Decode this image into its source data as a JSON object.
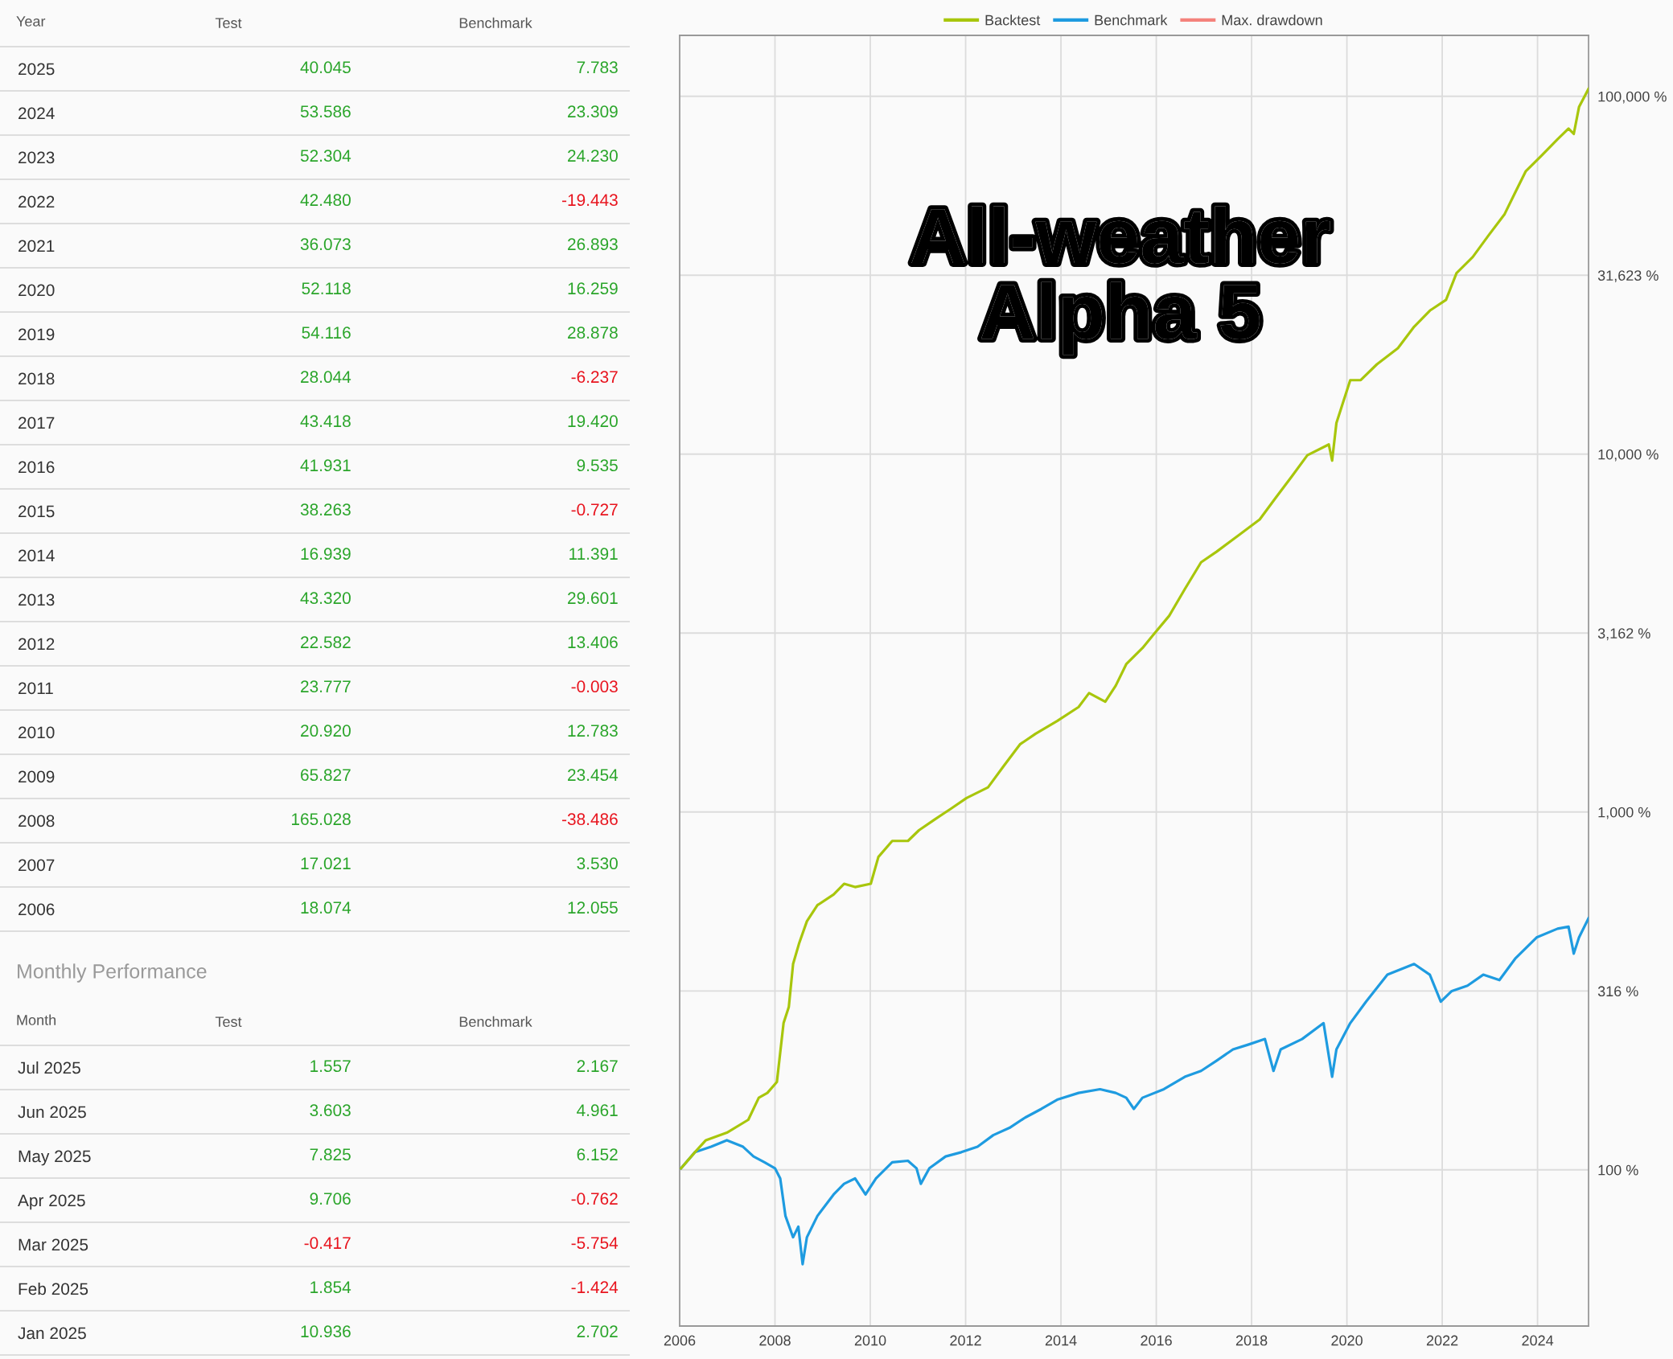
{
  "chart_data": [
    {
      "type": "heatmap",
      "ylabel": "Year",
      "categories": [
        "Test",
        "Benchmark"
      ],
      "y_categories": [
        "2025",
        "2024",
        "2023",
        "2022",
        "2021",
        "2020",
        "2019",
        "2018",
        "2017",
        "2016",
        "2015",
        "2014",
        "2013",
        "2012",
        "2011",
        "2010",
        "2009",
        "2008",
        "2007",
        "2006"
      ],
      "cells": [
        [
          40.045,
          7.783
        ],
        [
          53.586,
          23.309
        ],
        [
          52.304,
          24.23
        ],
        [
          42.48,
          -19.443
        ],
        [
          36.073,
          26.893
        ],
        [
          52.118,
          16.259
        ],
        [
          54.116,
          28.878
        ],
        [
          28.044,
          -6.237
        ],
        [
          43.418,
          19.42
        ],
        [
          41.931,
          9.535
        ],
        [
          38.263,
          -0.727
        ],
        [
          16.939,
          11.391
        ],
        [
          43.32,
          29.601
        ],
        [
          22.582,
          13.406
        ],
        [
          23.777,
          -0.003
        ],
        [
          20.92,
          12.783
        ],
        [
          65.827,
          23.454
        ],
        [
          165.028,
          -38.486
        ],
        [
          17.021,
          3.53
        ],
        [
          18.074,
          12.055
        ]
      ],
      "cell_labels": [
        [
          "40.045",
          "7.783"
        ],
        [
          "53.586",
          "23.309"
        ],
        [
          "52.304",
          "24.230"
        ],
        [
          "42.480",
          "-19.443"
        ],
        [
          "36.073",
          "26.893"
        ],
        [
          "52.118",
          "16.259"
        ],
        [
          "54.116",
          "28.878"
        ],
        [
          "28.044",
          "-6.237"
        ],
        [
          "43.418",
          "19.420"
        ],
        [
          "41.931",
          "9.535"
        ],
        [
          "38.263",
          "-0.727"
        ],
        [
          "16.939",
          "11.391"
        ],
        [
          "43.320",
          "29.601"
        ],
        [
          "22.582",
          "13.406"
        ],
        [
          "23.777",
          "-0.003"
        ],
        [
          "20.920",
          "12.783"
        ],
        [
          "65.827",
          "23.454"
        ],
        [
          "165.028",
          "-38.486"
        ],
        [
          "17.021",
          "3.530"
        ],
        [
          "18.074",
          "12.055"
        ]
      ],
      "colors": [
        "#2aa52a",
        "#e8141e"
      ]
    },
    {
      "type": "heatmap",
      "title": "Monthly Performance",
      "ylabel": "Month",
      "categories": [
        "Test",
        "Benchmark"
      ],
      "y_categories": [
        "Jul 2025",
        "Jun 2025",
        "May 2025",
        "Apr 2025",
        "Mar 2025",
        "Feb 2025",
        "Jan 2025"
      ],
      "cells": [
        [
          1.557,
          2.167
        ],
        [
          3.603,
          4.961
        ],
        [
          7.825,
          6.152
        ],
        [
          9.706,
          -0.762
        ],
        [
          -0.417,
          -5.754
        ],
        [
          1.854,
          -1.424
        ],
        [
          10.936,
          2.702
        ]
      ],
      "cell_labels": [
        [
          "1.557",
          "2.167"
        ],
        [
          "3.603",
          "4.961"
        ],
        [
          "7.825",
          "6.152"
        ],
        [
          "9.706",
          "-0.762"
        ],
        [
          "-0.417",
          "-5.754"
        ],
        [
          "1.854",
          "-1.424"
        ],
        [
          "10.936",
          "2.702"
        ]
      ],
      "colors": [
        "#2aa52a",
        "#e8141e"
      ]
    },
    {
      "type": "line",
      "log": "y",
      "grid": true,
      "legend": "top",
      "annotations": [
        "All-weather\nAlpha 5"
      ],
      "xlim": [
        2006.0,
        2025.07
      ],
      "xticks": [
        2006,
        2008,
        2010,
        2012,
        2014,
        2016,
        2018,
        2020,
        2022,
        2024
      ],
      "ylim": [
        36.6,
        148000
      ],
      "yticks": [
        {
          "value": 100,
          "label": "100 %"
        },
        {
          "value": 316,
          "label": "316 %"
        },
        {
          "value": 1000,
          "label": "1,000 %"
        },
        {
          "value": 3162,
          "label": "3,162 %"
        },
        {
          "value": 10000,
          "label": "10,000 %"
        },
        {
          "value": 31623,
          "label": "31,623 %"
        },
        {
          "value": 100000,
          "label": "100,000 %"
        }
      ],
      "series": [
        {
          "name": "Backtest",
          "color": "#a8c60c",
          "x": [
            2006.03,
            2006.32,
            2006.55,
            2006.99,
            2007.44,
            2007.66,
            2007.84,
            2008.04,
            2008.18,
            2008.29,
            2008.38,
            2008.51,
            2008.67,
            2008.89,
            2009.23,
            2009.45,
            2009.68,
            2010.01,
            2010.17,
            2010.46,
            2010.79,
            2011.02,
            2011.35,
            2011.69,
            2012.02,
            2012.47,
            2012.8,
            2013.14,
            2013.47,
            2013.92,
            2014.37,
            2014.59,
            2014.93,
            2015.15,
            2015.37,
            2015.71,
            2015.93,
            2016.27,
            2016.6,
            2016.94,
            2017.27,
            2017.72,
            2018.17,
            2018.5,
            2018.84,
            2019.17,
            2019.62,
            2019.69,
            2019.78,
            2020.07,
            2020.29,
            2020.63,
            2021.07,
            2021.41,
            2021.74,
            2022.08,
            2022.3,
            2022.64,
            2022.97,
            2023.31,
            2023.53,
            2023.75,
            2024.09,
            2024.42,
            2024.65,
            2024.76,
            2024.87,
            2025.07
          ],
          "values": [
            101,
            112,
            121,
            127,
            138,
            159,
            164,
            176,
            257,
            285,
            376,
            431,
            495,
            549,
            588,
            630,
            617,
            630,
            749,
            830,
            830,
            889,
            953,
            1021,
            1094,
            1172,
            1345,
            1545,
            1655,
            1795,
            1965,
            2149,
            2034,
            2255,
            2588,
            2871,
            3119,
            3532,
            4198,
            4986,
            5343,
            5920,
            6566,
            7535,
            8650,
            9931,
            10640,
            9594,
            12220,
            16100,
            16100,
            17830,
            19780,
            22700,
            25180,
            26980,
            32060,
            35560,
            40830,
            46880,
            53830,
            61660,
            68400,
            75860,
            81280,
            78520,
            93330,
            104900
          ]
        },
        {
          "name": "Benchmark",
          "color": "#1e9be0",
          "x": [
            2006.03,
            2006.32,
            2006.66,
            2006.99,
            2007.33,
            2007.55,
            2007.78,
            2008.0,
            2008.11,
            2008.22,
            2008.38,
            2008.49,
            2008.58,
            2008.67,
            2008.89,
            2009.23,
            2009.45,
            2009.68,
            2009.9,
            2010.12,
            2010.46,
            2010.79,
            2010.97,
            2011.06,
            2011.24,
            2011.58,
            2011.91,
            2012.25,
            2012.58,
            2012.92,
            2013.25,
            2013.59,
            2013.92,
            2014.37,
            2014.82,
            2015.15,
            2015.37,
            2015.53,
            2015.71,
            2016.16,
            2016.6,
            2016.94,
            2017.27,
            2017.61,
            2017.94,
            2018.28,
            2018.46,
            2018.61,
            2019.06,
            2019.51,
            2019.69,
            2019.78,
            2020.07,
            2020.4,
            2020.85,
            2021.41,
            2021.74,
            2021.97,
            2022.2,
            2022.53,
            2022.86,
            2023.2,
            2023.53,
            2023.98,
            2024.42,
            2024.65,
            2024.76,
            2024.87,
            2025.07
          ],
          "values": [
            101,
            112,
            116,
            121,
            116,
            109,
            105,
            101,
            94.6,
            74.3,
            64.8,
            69.4,
            54.5,
            64.8,
            74.3,
            85.3,
            91.4,
            94.6,
            85.3,
            94.6,
            105,
            106,
            101,
            91.4,
            101,
            109,
            112,
            116,
            125,
            131,
            140,
            148,
            157,
            164,
            168,
            164,
            159,
            148,
            159,
            168,
            182,
            189,
            202,
            217,
            224,
            232,
            189,
            217,
            232,
            257,
            182,
            217,
            257,
            295,
            351,
            376,
            351,
            295,
            316,
            327,
            351,
            339,
            389,
            446,
            472,
            478,
            402,
            446,
            505
          ]
        },
        {
          "name": "Max. drawdown",
          "color": "#f4827c"
        }
      ]
    }
  ]
}
